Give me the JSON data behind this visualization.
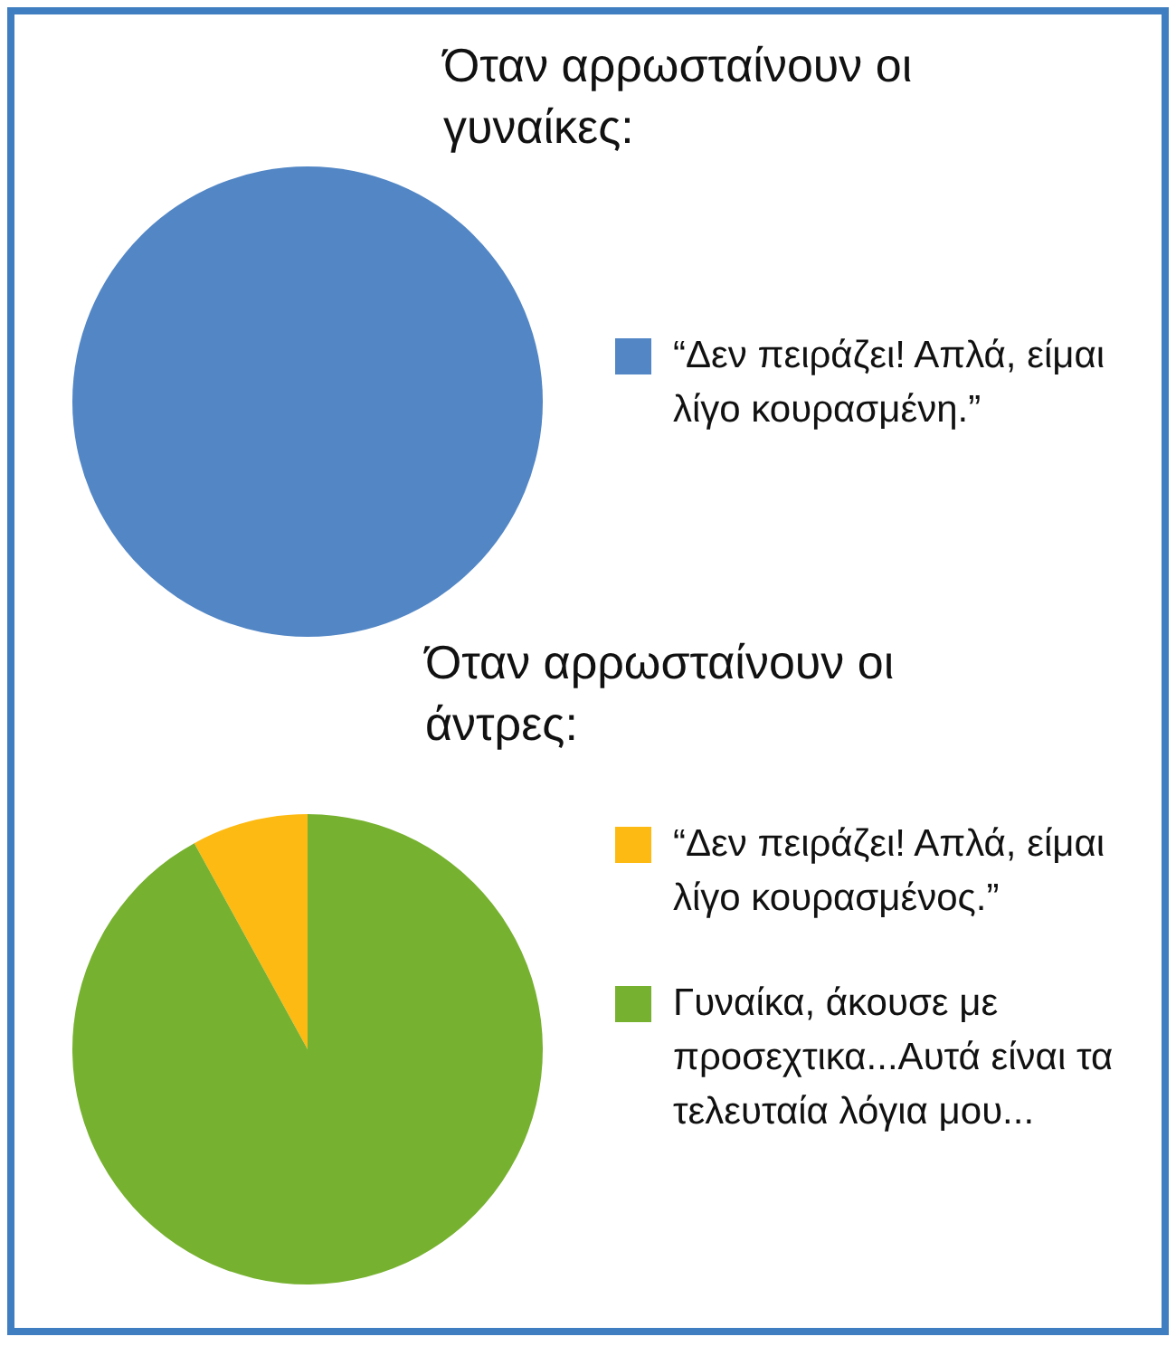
{
  "chart_data": [
    {
      "type": "pie",
      "title": "Όταν αρρωσταίνουν οι γυναίκες:",
      "categories": [
        "“Δεν πειράζει! Απλά, είμαι λίγο κουρασμένη.”"
      ],
      "values": [
        100
      ],
      "colors": [
        "#5286c5"
      ],
      "legend": "right"
    },
    {
      "type": "pie",
      "title": "Όταν αρρωσταίνουν οι άντρες:",
      "categories": [
        "“Δεν πειράζει! Απλά, είμαι λίγο κουρασμένος.”",
        "Γυναίκα, άκουσε με προσεχτικα...Αυτά είναι τα τελευταία λόγια μου..."
      ],
      "values": [
        8,
        92
      ],
      "colors": [
        "#fdba12",
        "#76b12f"
      ],
      "legend": "right"
    }
  ]
}
